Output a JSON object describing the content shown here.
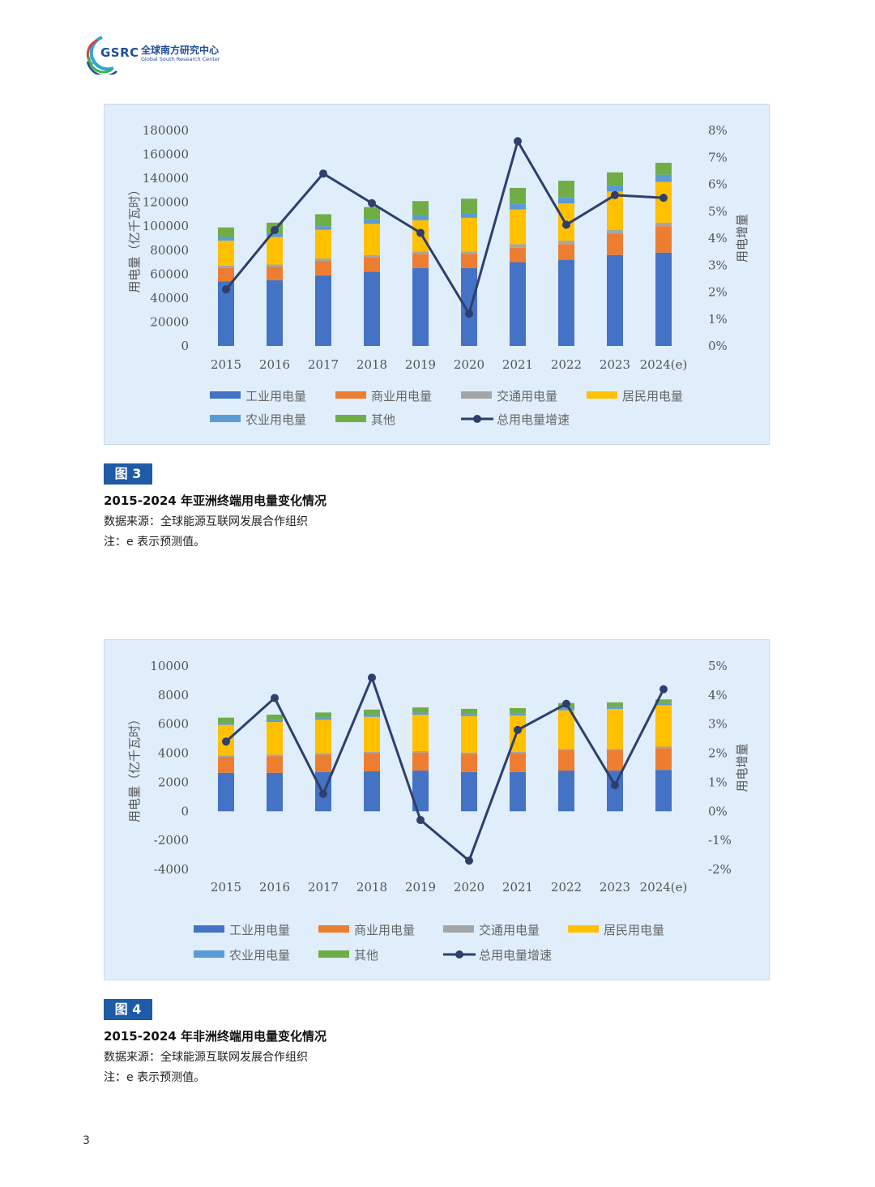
{
  "header": {
    "logo_abbr": "GSRC",
    "logo_cn": "全球南方研究中心",
    "logo_en": "Global South Research Center"
  },
  "figures": [
    {
      "badge": "图 3",
      "title": "2015-2024 年亚洲终端用电量变化情况",
      "source": "数据来源：全球能源互联网发展合作组织",
      "note": "注：e 表示预测值。"
    },
    {
      "badge": "图 4",
      "title": "2015-2024 年非洲终端用电量变化情况",
      "source": "数据来源：全球能源互联网发展合作组织",
      "note": "注：e 表示预测值。"
    }
  ],
  "page_number": "3",
  "chart_data": [
    {
      "type": "bar",
      "stacked": true,
      "categories": [
        "2015",
        "2016",
        "2017",
        "2018",
        "2019",
        "2020",
        "2021",
        "2022",
        "2023",
        "2024(e)"
      ],
      "ylabel": "用电量（亿千瓦时）",
      "y2label": "用电增量",
      "ylim": [
        0,
        180000
      ],
      "yticks": [
        "0",
        "20000",
        "40000",
        "60000",
        "80000",
        "100000",
        "120000",
        "140000",
        "160000",
        "180000"
      ],
      "y2lim": [
        0,
        0.08
      ],
      "y2ticks": [
        "0%",
        "1%",
        "2%",
        "3%",
        "4%",
        "5%",
        "6%",
        "7%",
        "8%"
      ],
      "series": [
        {
          "name": "工业用电量",
          "color": "#4472c4",
          "values": [
            54000,
            55000,
            59000,
            62000,
            65000,
            65000,
            70000,
            72000,
            76000,
            78000
          ]
        },
        {
          "name": "商业用电量",
          "color": "#ed7d31",
          "values": [
            11000,
            11000,
            12000,
            12000,
            12000,
            12000,
            12000,
            13000,
            18000,
            22000
          ]
        },
        {
          "name": "交通用电量",
          "color": "#a5a5a5",
          "values": [
            2000,
            2000,
            2000,
            2000,
            2000,
            2000,
            3000,
            3000,
            3000,
            3000
          ]
        },
        {
          "name": "居民用电量",
          "color": "#ffc000",
          "values": [
            21000,
            23000,
            24000,
            26000,
            26000,
            28000,
            29000,
            31000,
            32000,
            34000
          ]
        },
        {
          "name": "农业用电量",
          "color": "#5b9bd5",
          "values": [
            3000,
            3000,
            3000,
            4000,
            4000,
            4000,
            5000,
            5000,
            5000,
            6000
          ]
        },
        {
          "name": "其他",
          "color": "#70ad47",
          "values": [
            8000,
            9000,
            10000,
            10000,
            12000,
            12000,
            13000,
            14000,
            11000,
            10000
          ]
        }
      ],
      "line": {
        "name": "总用电量增速",
        "color": "#2e3f6e",
        "values": [
          0.021,
          0.043,
          0.064,
          0.053,
          0.042,
          0.012,
          0.076,
          0.045,
          0.056,
          0.055
        ]
      },
      "legend_position": "bottom"
    },
    {
      "type": "bar",
      "stacked": true,
      "categories": [
        "2015",
        "2016",
        "2017",
        "2018",
        "2019",
        "2020",
        "2021",
        "2022",
        "2023",
        "2024(e)"
      ],
      "ylabel": "用电量（亿千瓦时）",
      "y2label": "用电增量",
      "ylim": [
        -4000,
        10000
      ],
      "yticks": [
        "-4000",
        "-2000",
        "0",
        "2000",
        "4000",
        "6000",
        "8000",
        "10000"
      ],
      "y2lim": [
        -0.02,
        0.05
      ],
      "y2ticks": [
        "-2%",
        "-1%",
        "0%",
        "1%",
        "2%",
        "3%",
        "4%",
        "5%"
      ],
      "series": [
        {
          "name": "工业用电量",
          "color": "#4472c4",
          "values": [
            2650,
            2650,
            2700,
            2750,
            2800,
            2700,
            2700,
            2800,
            2800,
            2850
          ]
        },
        {
          "name": "商业用电量",
          "color": "#ed7d31",
          "values": [
            1100,
            1150,
            1200,
            1250,
            1250,
            1250,
            1300,
            1400,
            1400,
            1500
          ]
        },
        {
          "name": "交通用电量",
          "color": "#a5a5a5",
          "values": [
            100,
            100,
            100,
            100,
            100,
            100,
            100,
            100,
            100,
            100
          ]
        },
        {
          "name": "居民用电量",
          "color": "#ffc000",
          "values": [
            2100,
            2250,
            2300,
            2400,
            2500,
            2500,
            2500,
            2650,
            2750,
            2850
          ]
        },
        {
          "name": "农业用电量",
          "color": "#5b9bd5",
          "values": [
            150,
            150,
            150,
            150,
            150,
            150,
            150,
            150,
            150,
            150
          ]
        },
        {
          "name": "其他",
          "color": "#70ad47",
          "values": [
            350,
            350,
            350,
            350,
            350,
            350,
            350,
            350,
            300,
            250
          ]
        }
      ],
      "line": {
        "name": "总用电量增速",
        "color": "#2e3f6e",
        "values": [
          0.024,
          0.039,
          0.006,
          0.046,
          -0.003,
          -0.017,
          0.028,
          0.037,
          0.009,
          0.042
        ]
      },
      "legend_position": "bottom"
    }
  ]
}
